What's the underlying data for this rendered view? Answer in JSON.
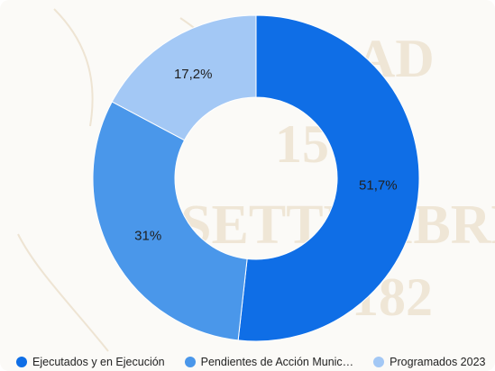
{
  "chart_data": {
    "type": "pie",
    "donut": true,
    "categories": [
      "Ejecutados y en Ejecución",
      "Pendientes de Acción Munic…",
      "Programados 2023"
    ],
    "values": [
      51.7,
      31,
      17.2
    ],
    "value_labels": [
      "51,7%",
      "31%",
      "17,2%"
    ],
    "colors": [
      "#0f6ee6",
      "#4a97ea",
      "#a3c8f5"
    ],
    "legend_position": "bottom"
  }
}
